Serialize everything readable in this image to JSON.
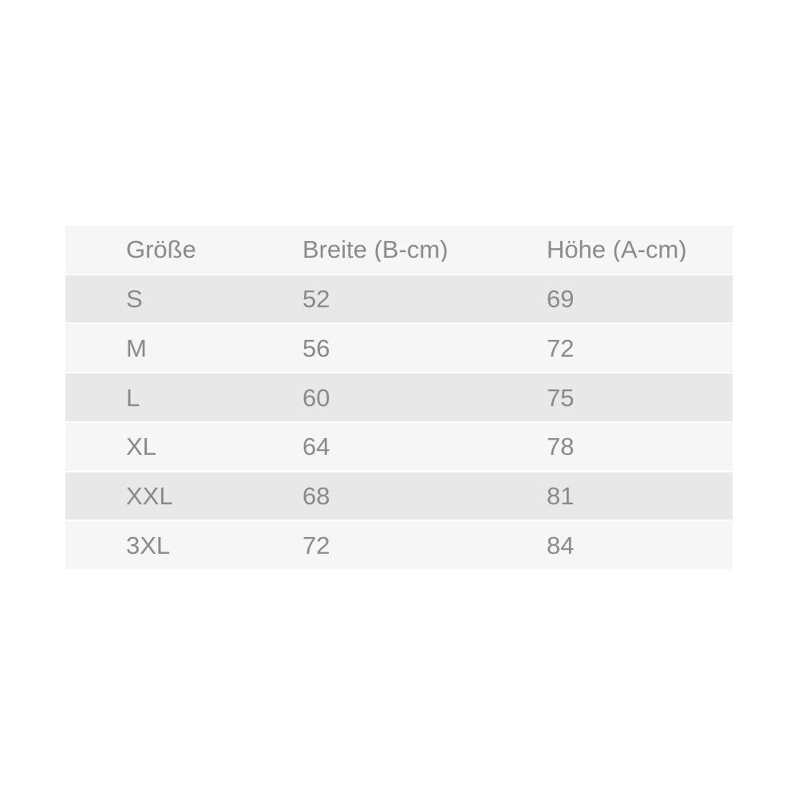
{
  "chart_data": {
    "type": "table",
    "title": "",
    "columns": [
      "Größe",
      "Breite (B-cm)",
      "Höhe (A-cm)"
    ],
    "rows": [
      [
        "S",
        "52",
        "69"
      ],
      [
        "M",
        "56",
        "72"
      ],
      [
        "L",
        "60",
        "75"
      ],
      [
        "XL",
        "64",
        "78"
      ],
      [
        "XXL",
        "68",
        "81"
      ],
      [
        "3XL",
        "72",
        "84"
      ]
    ],
    "units": "cm",
    "layout_hints": {
      "striped": true,
      "header_position": "top",
      "grid": "off"
    }
  },
  "colors": {
    "background": "#ffffff",
    "row_light": "#f6f6f6",
    "row_dark": "#e8e8e8",
    "text": "#8a8a8a",
    "row_separator": "#ffffff"
  }
}
